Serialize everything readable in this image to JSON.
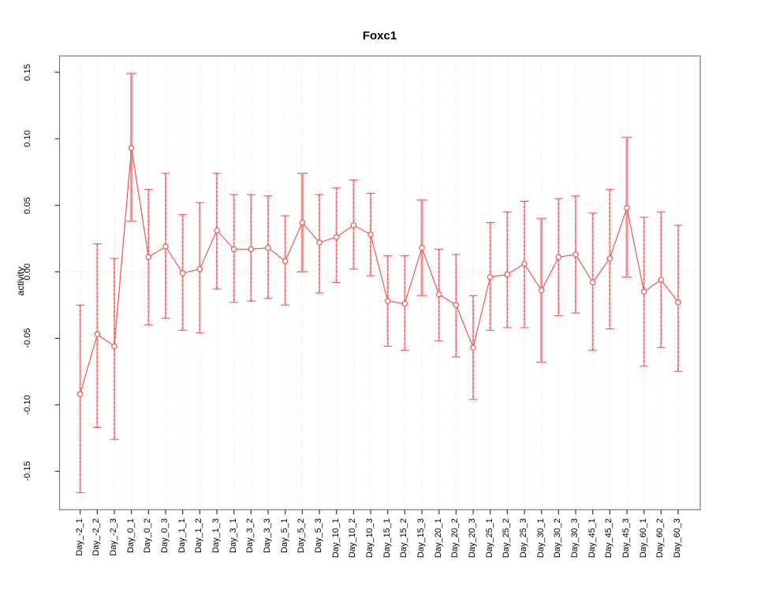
{
  "title": "Foxc1",
  "ylabel": "activity",
  "colors": {
    "line": "#ee5555",
    "marker": "#ee5555",
    "bar_base": "#f7a3a3",
    "bar_overlay": "#ee5555",
    "bar_thick": "#f59090",
    "grid": "#d9d9d9",
    "zero_line": "#c8c8c8",
    "box": "#7a7a7a",
    "tick": "#3a3a3a",
    "text": "#000000",
    "background": "#ffffff"
  },
  "chart_data": {
    "type": "line",
    "title": "Foxc1",
    "xlabel": "",
    "ylabel": "activity",
    "marker": "open-circle",
    "grid": "vertical-dotted-per-category",
    "zero_reference_line": true,
    "legend": "none",
    "ylim": [
      -0.186,
      0.17
    ],
    "yticks": [
      0.15,
      0.1,
      0.05,
      0.0,
      -0.05,
      -0.1,
      -0.15
    ],
    "ytick_labels": [
      "0.15",
      "0.10",
      "0.05",
      "0.00",
      "-0.05",
      "-0.10",
      "-0.15"
    ],
    "categories": [
      "Day_-2_1",
      "Day_-2_2",
      "Day_-2_3",
      "Day_0_1",
      "Day_0_2",
      "Day_0_3",
      "Day_1_1",
      "Day_1_2",
      "Day_1_3",
      "Day_3_1",
      "Day_3_2",
      "Day_3_3",
      "Day_5_1",
      "Day_5_2",
      "Day_5_3",
      "Day_10_1",
      "Day_10_2",
      "Day_10_3",
      "Day_15_1",
      "Day_15_2",
      "Day_15_3",
      "Day_20_1",
      "Day_20_2",
      "Day_20_3",
      "Day_25_1",
      "Day_25_2",
      "Day_25_3",
      "Day_30_1",
      "Day_30_2",
      "Day_30_3",
      "Day_45_1",
      "Day_45_2",
      "Day_45_3",
      "Day_60_1",
      "Day_60_2",
      "Day_60_3"
    ],
    "series": [
      {
        "name": "activity",
        "values": [
          -0.092,
          -0.047,
          -0.056,
          0.093,
          0.011,
          0.019,
          -0.001,
          0.002,
          0.031,
          0.017,
          0.017,
          0.018,
          0.008,
          0.037,
          0.022,
          0.026,
          0.035,
          0.028,
          -0.022,
          -0.024,
          0.018,
          -0.017,
          -0.025,
          -0.057,
          -0.004,
          -0.002,
          0.006,
          -0.014,
          0.011,
          0.013,
          -0.008,
          0.01,
          0.048,
          -0.015,
          -0.006,
          -0.023
        ],
        "error_low": [
          -0.166,
          -0.117,
          -0.126,
          0.038,
          -0.04,
          -0.035,
          -0.044,
          -0.046,
          -0.013,
          -0.023,
          -0.022,
          -0.02,
          -0.025,
          0.0,
          -0.016,
          -0.008,
          0.002,
          -0.003,
          -0.056,
          -0.059,
          -0.018,
          -0.052,
          -0.064,
          -0.096,
          -0.044,
          -0.042,
          -0.042,
          -0.068,
          -0.033,
          -0.031,
          -0.059,
          -0.043,
          -0.004,
          -0.071,
          -0.057,
          -0.075
        ],
        "error_high": [
          -0.025,
          0.021,
          0.01,
          0.149,
          0.062,
          0.074,
          0.043,
          0.052,
          0.074,
          0.058,
          0.058,
          0.057,
          0.042,
          0.074,
          0.058,
          0.063,
          0.069,
          0.059,
          0.012,
          0.012,
          0.054,
          0.017,
          0.013,
          -0.018,
          0.037,
          0.045,
          0.053,
          0.04,
          0.055,
          0.057,
          0.044,
          0.062,
          0.101,
          0.041,
          0.045,
          0.035
        ],
        "thick_bar_indices": [
          3,
          13,
          20,
          27,
          32
        ]
      }
    ]
  }
}
